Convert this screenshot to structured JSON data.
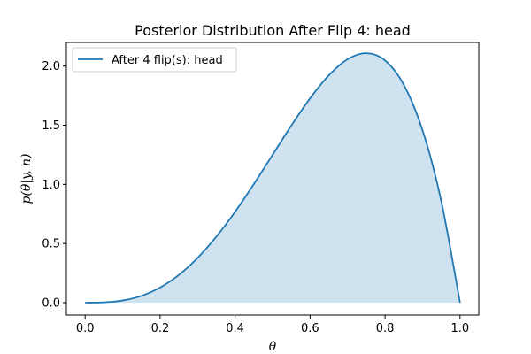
{
  "chart_data": {
    "type": "area",
    "title": "Posterior Distribution After Flip 4: head",
    "xlabel": "θ",
    "ylabel": "p(θ|y, n)",
    "xlim": [
      -0.05,
      1.05
    ],
    "ylim": [
      -0.105,
      2.2
    ],
    "xticks": [
      0.0,
      0.2,
      0.4,
      0.6,
      0.8,
      1.0
    ],
    "xtick_labels": [
      "0.0",
      "0.2",
      "0.4",
      "0.6",
      "0.8",
      "1.0"
    ],
    "yticks": [
      0.0,
      0.5,
      1.0,
      1.5,
      2.0
    ],
    "ytick_labels": [
      "0.0",
      "0.5",
      "1.0",
      "1.5",
      "2.0"
    ],
    "grid": false,
    "legend_position": "top-left",
    "series": [
      {
        "name": "After 4 flip(s): head",
        "line_color": "#1f77b4",
        "fill_color": "#cfe2f0",
        "x": [
          0.0,
          0.05,
          0.1,
          0.15,
          0.2,
          0.25,
          0.3,
          0.35,
          0.4,
          0.45,
          0.5,
          0.55,
          0.6,
          0.65,
          0.7,
          0.75,
          0.8,
          0.85,
          0.9,
          0.95,
          1.0
        ],
        "y": [
          0.0,
          0.0025,
          0.018,
          0.0574,
          0.128,
          0.2344,
          0.378,
          0.5574,
          0.768,
          1.0024,
          1.25,
          1.4974,
          1.728,
          1.9224,
          2.058,
          2.1094,
          2.048,
          1.8424,
          1.458,
          0.8574,
          0.0
        ]
      }
    ]
  }
}
